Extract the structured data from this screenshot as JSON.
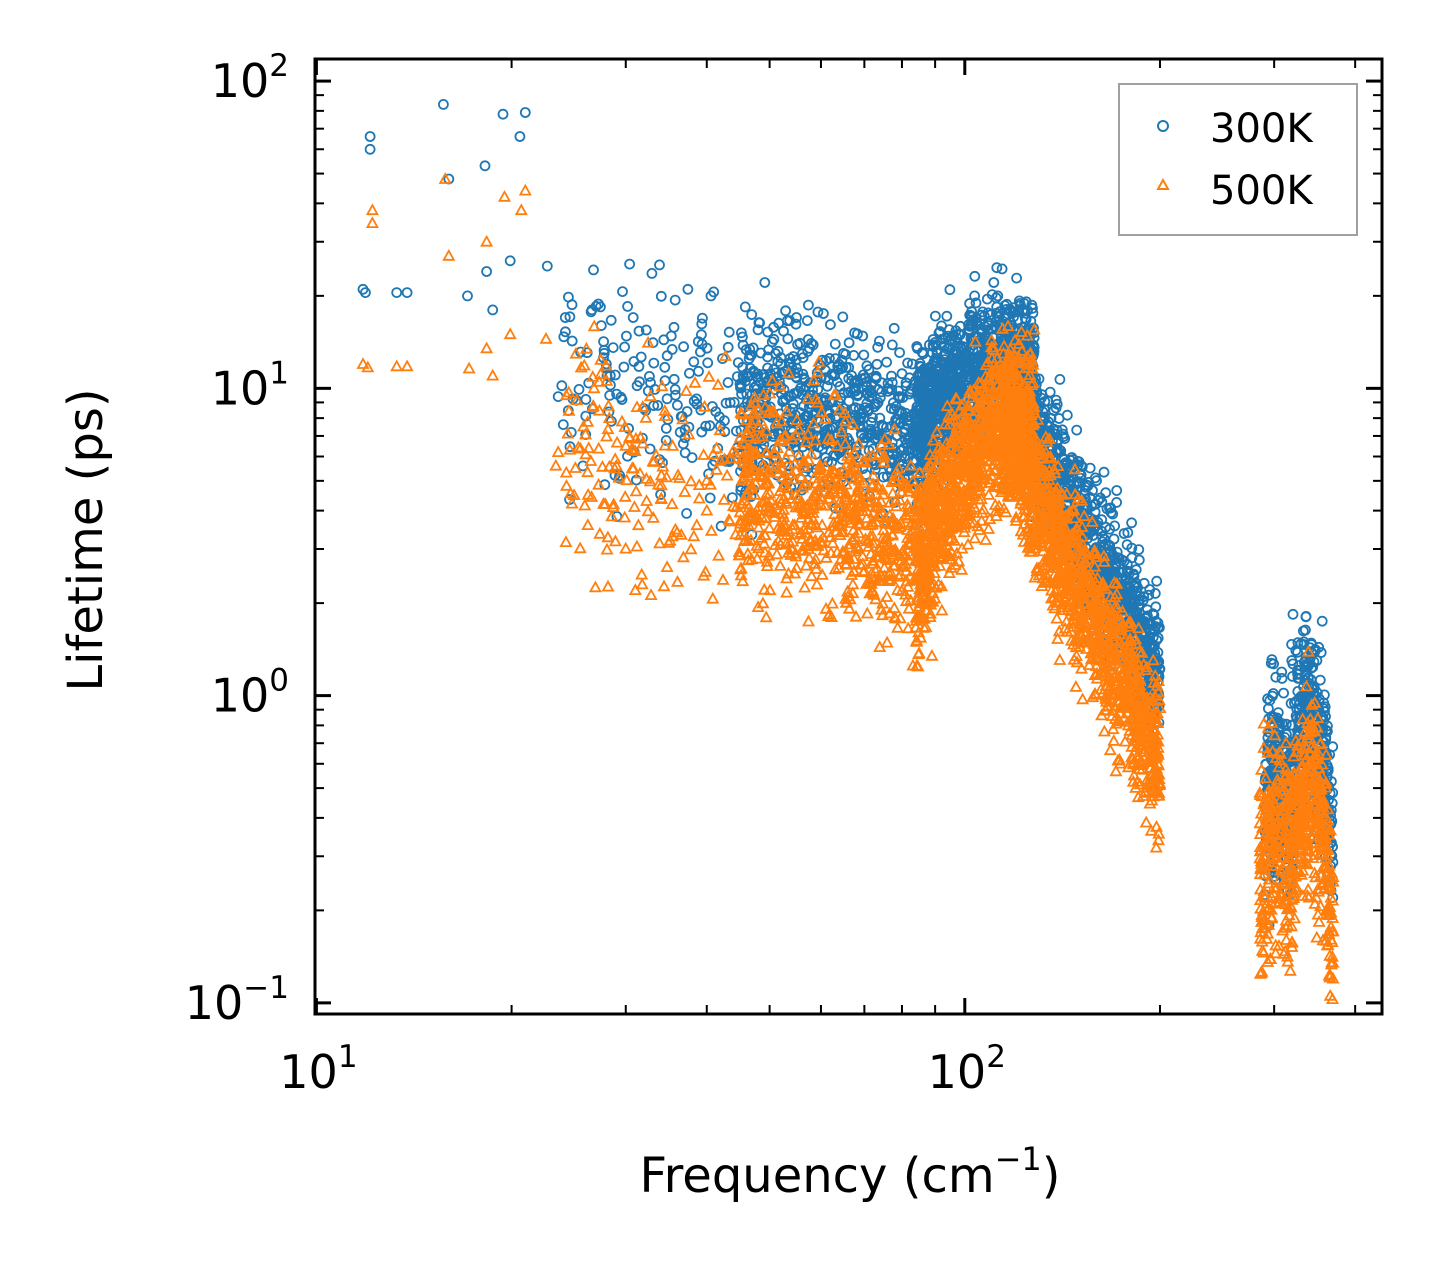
{
  "chart_data": {
    "type": "scatter",
    "title": "",
    "xlabel": "Frequency (cm",
    "xlabel_sup": "−1",
    "xlabel_tail": ")",
    "ylabel": "Lifetime (ps)",
    "xscale": "log",
    "yscale": "log",
    "xlim": [
      9.95,
      440
    ],
    "ylim": [
      0.092,
      118
    ],
    "x_ticks": [
      {
        "value": 10,
        "base": "10",
        "exp": "1"
      },
      {
        "value": 100,
        "base": "10",
        "exp": "2"
      }
    ],
    "y_ticks": [
      {
        "value": 0.1,
        "base": "10",
        "exp": "−1"
      },
      {
        "value": 1,
        "base": "10",
        "exp": "0"
      },
      {
        "value": 10,
        "base": "10",
        "exp": "1"
      },
      {
        "value": 100,
        "base": "10",
        "exp": "2"
      }
    ],
    "legend_position": "top-right",
    "series": [
      {
        "name": "300K",
        "color": "#1f77b4",
        "marker": "circle",
        "points": [
          [
            11.8,
            21
          ],
          [
            11.9,
            20.5
          ],
          [
            12.1,
            66
          ],
          [
            12.1,
            60
          ],
          [
            13.3,
            20.5
          ],
          [
            13.8,
            20.5
          ],
          [
            15.7,
            84
          ],
          [
            16,
            48
          ],
          [
            17.1,
            20
          ],
          [
            18.2,
            53
          ],
          [
            18.3,
            24
          ],
          [
            18.7,
            18
          ],
          [
            19.4,
            78
          ],
          [
            19.9,
            26
          ],
          [
            20.6,
            66
          ],
          [
            21,
            79
          ],
          [
            22.7,
            25
          ],
          [
            23.6,
            9.4
          ],
          [
            23.9,
            10.2
          ],
          [
            24.2,
            17
          ],
          [
            24.6,
            17.1
          ],
          [
            26.3,
            10.4
          ],
          [
            26.6,
            18
          ],
          [
            27,
            18.5
          ],
          [
            27.5,
            16
          ],
          [
            27.8,
            13
          ],
          [
            28,
            12
          ],
          [
            28.4,
            11
          ],
          [
            29.6,
            9.2
          ],
          [
            30.3,
            7.4
          ],
          [
            30.8,
            17
          ],
          [
            31.5,
            10.5
          ],
          [
            32.5,
            9.8
          ],
          [
            33.6,
            8.8
          ],
          [
            35.6,
            15.8
          ],
          [
            35.8,
            9.5
          ],
          [
            36.4,
            7.2
          ],
          [
            36.8,
            6.6
          ],
          [
            37.4,
            21
          ],
          [
            38.2,
            12.2
          ],
          [
            40.6,
            20
          ],
          [
            41,
            20.6
          ],
          [
            42.3,
            12.5
          ],
          [
            44.1,
            9
          ],
          [
            46.5,
            7.5
          ],
          [
            47,
            8
          ],
          [
            50.1,
            8.7
          ],
          [
            52,
            12
          ],
          [
            54.4,
            8
          ],
          [
            55,
            17
          ],
          [
            57.6,
            13.5
          ],
          [
            58,
            14
          ],
          [
            60,
            9.2
          ],
          [
            63,
            11
          ],
          [
            66.9,
            11
          ],
          [
            70.5,
            10.2
          ],
          [
            73.5,
            9
          ],
          [
            77,
            8.6
          ],
          [
            80,
            8.3
          ],
          [
            84,
            8.1
          ],
          [
            87,
            9
          ],
          [
            92,
            8.6
          ]
        ],
        "bands": [
          {
            "x_from": 24,
            "x_to": 50,
            "center_from": 10.5,
            "center_to": 8.5,
            "center_mid": 9.5,
            "spread": 0.18,
            "count": 170
          },
          {
            "x_from": 45,
            "x_to": 90,
            "center_from": 8.8,
            "center_to": 7.4,
            "center_mid": 8.4,
            "spread": 0.13,
            "count": 700
          },
          {
            "x_from": 84,
            "x_to": 128,
            "center_from": 7.6,
            "center_to": 12,
            "center_mid": 13.5,
            "spread": 0.11,
            "count": 1000
          },
          {
            "x_from": 115,
            "x_to": 200,
            "center_from": 11,
            "center_to": 1.2,
            "center_mid": 3.2,
            "spread": 0.12,
            "count": 1200
          },
          {
            "x_from": 290,
            "x_to": 320,
            "center_from": 0.42,
            "center_to": 0.36,
            "center_mid": 0.78,
            "spread": 0.16,
            "count": 240
          },
          {
            "x_from": 318,
            "x_to": 370,
            "center_from": 0.6,
            "center_to": 0.3,
            "center_mid": 1.7,
            "spread": 0.15,
            "count": 360
          }
        ]
      },
      {
        "name": "500K",
        "color": "#ff7f0e",
        "marker": "triangle",
        "points": [
          [
            11.8,
            12
          ],
          [
            12,
            11.7
          ],
          [
            12.2,
            38
          ],
          [
            12.2,
            34.5
          ],
          [
            13.3,
            11.8
          ],
          [
            13.8,
            11.8
          ],
          [
            15.8,
            48
          ],
          [
            16,
            27
          ],
          [
            17.2,
            11.6
          ],
          [
            18.3,
            30
          ],
          [
            18.3,
            13.5
          ],
          [
            18.7,
            11
          ],
          [
            19.5,
            42
          ],
          [
            19.9,
            15
          ],
          [
            20.7,
            38
          ],
          [
            21,
            44
          ],
          [
            22.6,
            14.5
          ],
          [
            23.4,
            5.6
          ],
          [
            23.6,
            6.2
          ],
          [
            24.3,
            9.5
          ],
          [
            24.5,
            9.7
          ],
          [
            26.5,
            5.8
          ],
          [
            26.8,
            10
          ],
          [
            27.3,
            10.5
          ],
          [
            27.9,
            4.2
          ],
          [
            28.3,
            8
          ],
          [
            29.6,
            7.8
          ],
          [
            30,
            6.5
          ],
          [
            30.7,
            5.5
          ],
          [
            32.3,
            4.3
          ],
          [
            35.4,
            3.3
          ],
          [
            36,
            3.4
          ],
          [
            37,
            4.6
          ],
          [
            38.2,
            3.3
          ],
          [
            40,
            4
          ],
          [
            43,
            5.2
          ],
          [
            47,
            3.8
          ],
          [
            52,
            3.1
          ],
          [
            55,
            2.6
          ],
          [
            58,
            3.6
          ],
          [
            63,
            5.3
          ],
          [
            69,
            3.6
          ],
          [
            78,
            1.8
          ],
          [
            80,
            2.9
          ],
          [
            86,
            2.1
          ]
        ],
        "bands": [
          {
            "x_from": 24,
            "x_to": 50,
            "center_from": 5.6,
            "center_to": 4.8,
            "center_mid": 5.2,
            "spread": 0.2,
            "count": 190
          },
          {
            "x_from": 45,
            "x_to": 90,
            "center_from": 4.8,
            "center_to": 2.7,
            "center_mid": 4.6,
            "spread": 0.16,
            "count": 700
          },
          {
            "x_from": 84,
            "x_to": 128,
            "center_from": 2.4,
            "center_to": 8.2,
            "center_mid": 9,
            "spread": 0.13,
            "count": 1000
          },
          {
            "x_from": 115,
            "x_to": 200,
            "center_from": 7.4,
            "center_to": 0.6,
            "center_mid": 2.2,
            "spread": 0.13,
            "count": 1200
          },
          {
            "x_from": 285,
            "x_to": 320,
            "center_from": 0.24,
            "center_to": 0.2,
            "center_mid": 0.55,
            "spread": 0.17,
            "count": 240
          },
          {
            "x_from": 318,
            "x_to": 370,
            "center_from": 0.3,
            "center_to": 0.16,
            "center_mid": 1.15,
            "spread": 0.16,
            "count": 360
          }
        ]
      }
    ]
  }
}
